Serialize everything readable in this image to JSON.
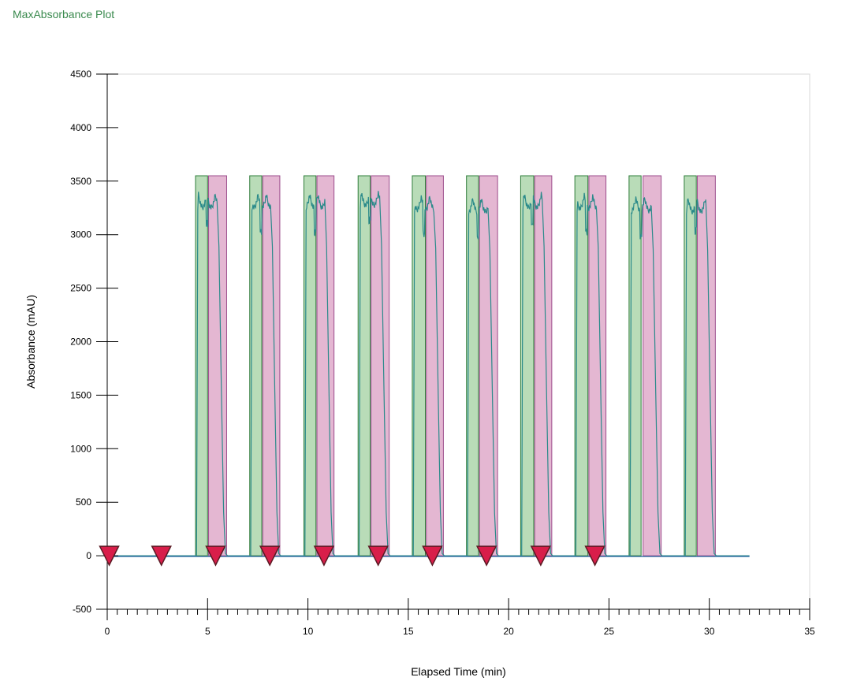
{
  "page": {
    "title": "MaxAbsorbance Plot"
  },
  "chart_data": {
    "type": "line",
    "xlabel": "Elapsed Time (min)",
    "ylabel": "Absorbance (mAU)",
    "xlim": [
      0,
      35
    ],
    "ylim": [
      -500,
      4500
    ],
    "xticks": [
      0,
      5,
      10,
      15,
      20,
      25,
      30,
      35
    ],
    "yticks": [
      -500,
      0,
      500,
      1000,
      1500,
      2000,
      2500,
      3000,
      3500,
      4000,
      4500
    ],
    "x_minor_step": 0.5,
    "grid": false,
    "colors": {
      "trace": "#2a8a8a",
      "trace_tail": "#4a7fb0",
      "green_fill": "#b9dcb8",
      "green_stroke": "#2f7d3a",
      "pink_fill": "#e4b7d2",
      "pink_stroke": "#9c4d8c",
      "marker_fill": "#d81e4a",
      "marker_stroke": "#5a1a24",
      "title": "#3a8a4e"
    },
    "fraction_windows_top": 3550,
    "green_windows": [
      [
        4.4,
        5.0
      ],
      [
        7.1,
        7.7
      ],
      [
        9.8,
        10.4
      ],
      [
        12.5,
        13.1
      ],
      [
        15.2,
        15.85
      ],
      [
        17.9,
        18.5
      ],
      [
        20.6,
        21.25
      ],
      [
        23.3,
        23.95
      ],
      [
        26.0,
        26.6
      ],
      [
        28.75,
        29.35
      ]
    ],
    "pink_windows": [
      [
        5.05,
        5.95
      ],
      [
        7.75,
        8.6
      ],
      [
        10.45,
        11.3
      ],
      [
        13.15,
        14.05
      ],
      [
        15.9,
        16.75
      ],
      [
        18.55,
        19.45
      ],
      [
        21.3,
        22.15
      ],
      [
        24.0,
        24.85
      ],
      [
        26.7,
        27.6
      ],
      [
        29.4,
        30.3
      ]
    ],
    "markers_x": [
      0.1,
      2.7,
      5.4,
      8.1,
      10.8,
      13.5,
      16.2,
      18.9,
      21.6,
      24.3
    ],
    "trace": {
      "baseline": 0,
      "end_x": 32.0,
      "peaks": [
        {
          "start": 4.45,
          "end": 6.0,
          "top": 3400
        },
        {
          "start": 7.15,
          "end": 8.65,
          "top": 3400
        },
        {
          "start": 9.85,
          "end": 11.35,
          "top": 3400
        },
        {
          "start": 12.55,
          "end": 14.1,
          "top": 3420
        },
        {
          "start": 15.25,
          "end": 16.8,
          "top": 3380
        },
        {
          "start": 17.95,
          "end": 19.5,
          "top": 3360
        },
        {
          "start": 20.65,
          "end": 22.2,
          "top": 3400
        },
        {
          "start": 23.35,
          "end": 24.9,
          "top": 3390
        },
        {
          "start": 26.05,
          "end": 27.65,
          "top": 3370
        },
        {
          "start": 28.8,
          "end": 30.35,
          "top": 3360
        }
      ]
    }
  }
}
